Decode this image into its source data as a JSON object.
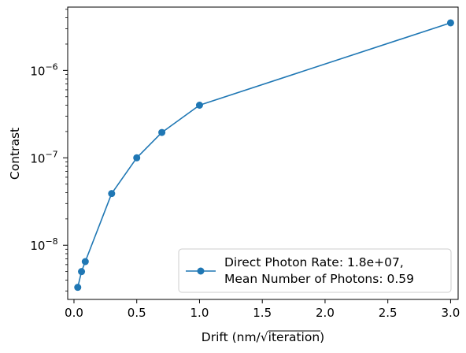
{
  "chart_data": {
    "type": "line",
    "title": "",
    "xlabel": "Drift (nm/√iteration)",
    "xlabel_parts": {
      "prefix": "Drift (nm/",
      "radical": "√",
      "radicand": "iteration",
      "suffix": ")"
    },
    "ylabel": "Contrast",
    "xlim": [
      -0.05,
      3.06
    ],
    "ylim": [
      2.4e-09,
      5.3e-06
    ],
    "yscale": "log",
    "grid": false,
    "legend_position": "lower-right",
    "x_ticks": [
      0.0,
      0.5,
      1.0,
      1.5,
      2.0,
      2.5,
      3.0
    ],
    "x_tick_labels": [
      "0.0",
      "0.5",
      "1.0",
      "1.5",
      "2.0",
      "2.5",
      "3.0"
    ],
    "y_ticks": [
      {
        "value": 1e-08,
        "base": "10",
        "exponent": "−8"
      },
      {
        "value": 1e-07,
        "base": "10",
        "exponent": "−7"
      },
      {
        "value": 1e-06,
        "base": "10",
        "exponent": "−6"
      }
    ],
    "series": [
      {
        "name_lines": [
          "Direct Photon Rate: 1.8e+07,",
          "Mean Number of Photons: 0.59"
        ],
        "color": "#1f77b4",
        "marker": "circle",
        "x": [
          0.03,
          0.06,
          0.09,
          0.3,
          0.5,
          0.7,
          1.0,
          3.0
        ],
        "y": [
          3.3e-09,
          5e-09,
          6.5e-09,
          3.9e-08,
          1e-07,
          1.95e-07,
          4e-07,
          3.5e-06
        ]
      }
    ]
  }
}
